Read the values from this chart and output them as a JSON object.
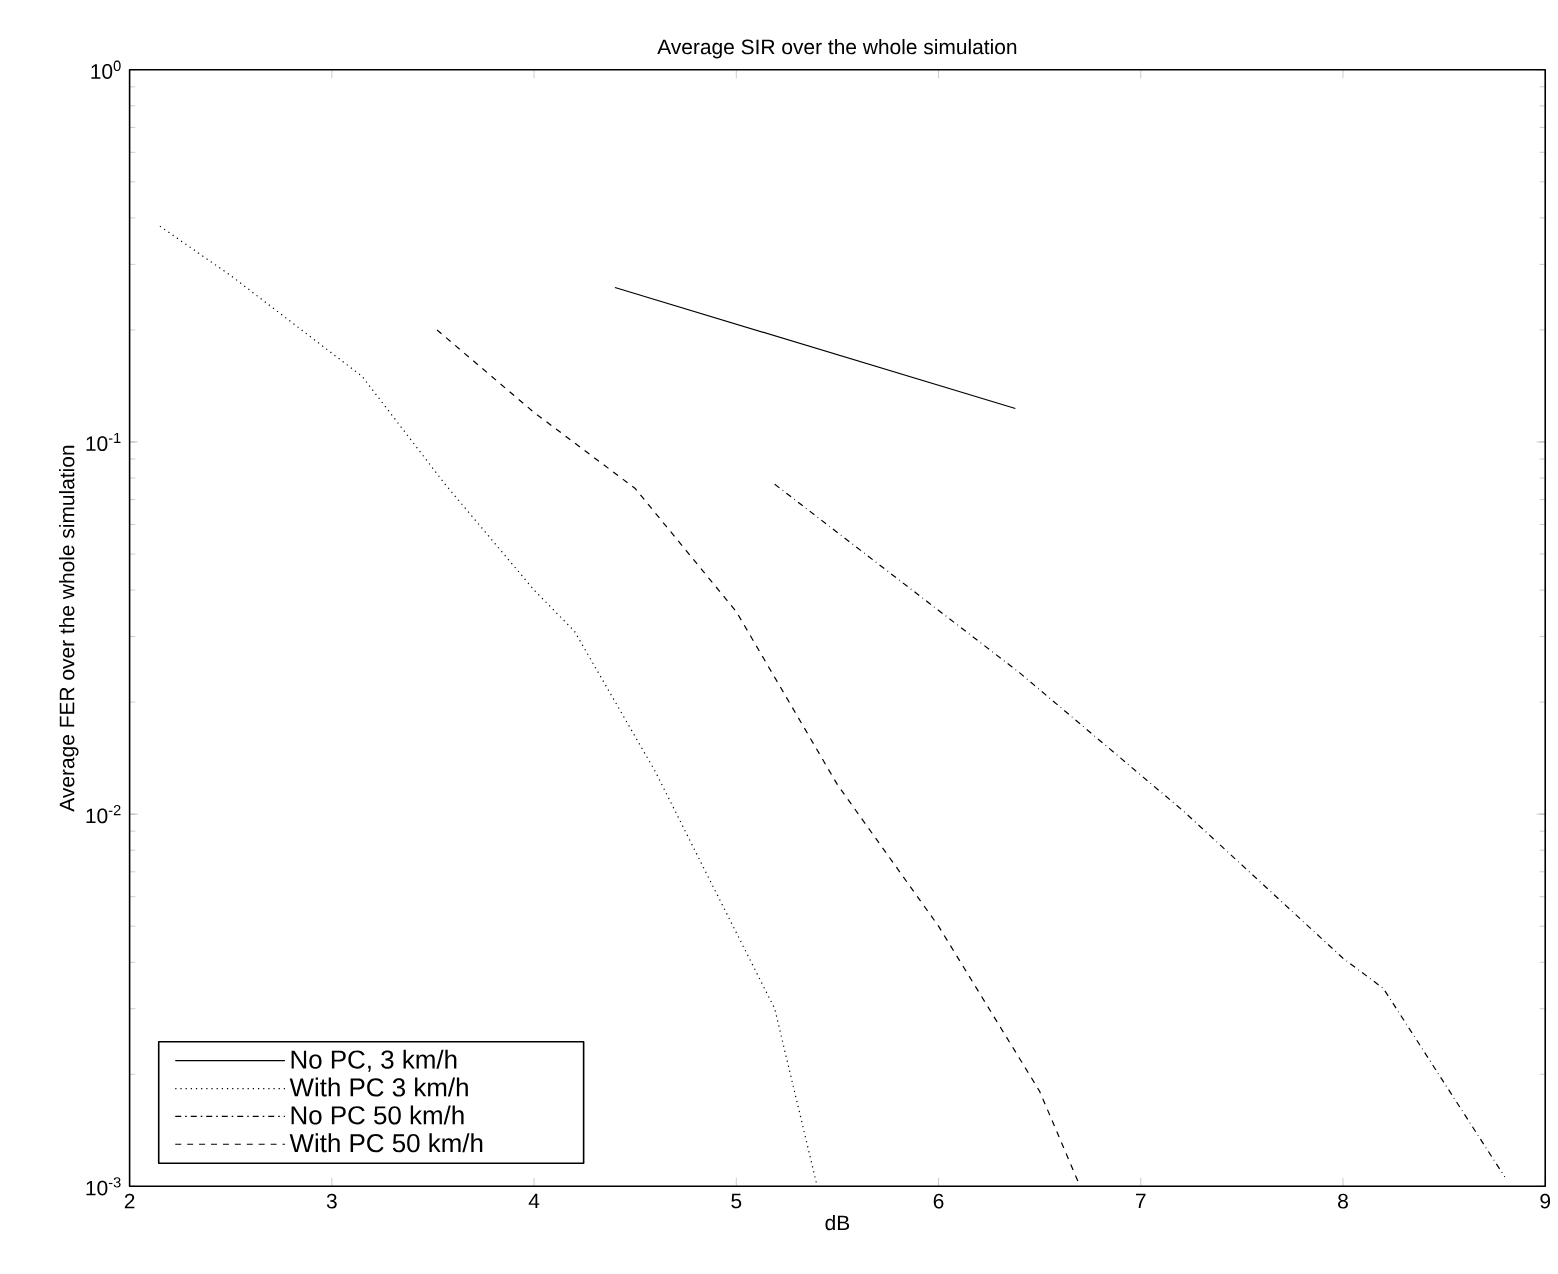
{
  "chart_data": {
    "type": "line",
    "title": "Average SIR over the whole simulation",
    "xlabel": "dB",
    "ylabel": "Average FER over the whole simulation",
    "log": "y",
    "xlim": [
      2,
      9
    ],
    "ylim": [
      0.001,
      1
    ],
    "xticks": [
      2,
      3,
      4,
      5,
      6,
      7,
      8,
      9
    ],
    "yticks": [
      {
        "value": 0.001,
        "label": "10$^{-3}$"
      },
      {
        "value": 0.01,
        "label": "10$^{-2}$"
      },
      {
        "value": 0.1,
        "label": "10$^{-1}$"
      },
      {
        "value": 1,
        "label": "10$^{0}$"
      }
    ],
    "legend": "bottom left",
    "series": [
      {
        "name": "No PC, 3 km/h",
        "color": "#000000",
        "line_style": "solid",
        "x": [
          4.4,
          6.38
        ],
        "values": [
          0.26,
          0.123
        ]
      },
      {
        "name": "With PC 3 km/h",
        "color": "#000000",
        "line_style": "dotted",
        "x": [
          2.15,
          2.5,
          3.15,
          3.56,
          4.0,
          4.2,
          4.6,
          4.86,
          5.19,
          5.4
        ],
        "values": [
          0.38,
          0.28,
          0.15,
          0.077,
          0.04,
          0.031,
          0.013,
          0.0068,
          0.003,
          0.001
        ]
      },
      {
        "name": "No PC 50 km/h",
        "color": "#000000",
        "line_style": "dashdot",
        "x": [
          5.19,
          6.4,
          7.21,
          8.0,
          8.2,
          8.8
        ],
        "values": [
          0.077,
          0.024,
          0.0102,
          0.0041,
          0.0034,
          0.00106
        ]
      },
      {
        "name": "With PC 50 km/h",
        "color": "#000000",
        "line_style": "dashed",
        "x": [
          3.52,
          4.0,
          4.5,
          5.0,
          5.25,
          5.5,
          6.0,
          6.5,
          6.7
        ],
        "values": [
          0.2,
          0.12,
          0.075,
          0.035,
          0.0205,
          0.012,
          0.005,
          0.0018,
          0.001
        ]
      }
    ]
  }
}
